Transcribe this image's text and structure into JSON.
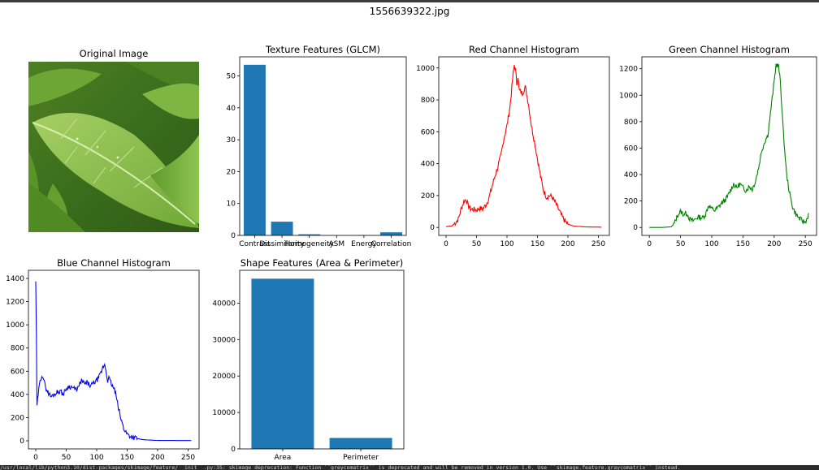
{
  "page": {
    "suptitle": "1556639322.jpg",
    "warning_text": "/usr/local/lib/python3.10/dist-packages/skimage/feature/__init__.py:35: skimage_deprecation: Function ``greycomatrix`` is deprecated and will be removed in version 1.0. Use ``skimage.feature.graycomatrix`` instead."
  },
  "image_panel": {
    "title": "Original Image"
  },
  "chart_data": [
    {
      "id": "texture",
      "type": "bar",
      "title": "Texture Features (GLCM)",
      "categories": [
        "Contrast",
        "Dissimilarity",
        "Homogeneity",
        "ASM",
        "Energy",
        "Correlation"
      ],
      "values": [
        53.5,
        4.3,
        0.35,
        0.01,
        0.08,
        0.97
      ],
      "ylim": [
        0,
        56
      ],
      "yticks": [
        0,
        10,
        20,
        30,
        40,
        50
      ],
      "color": "#1f77b4"
    },
    {
      "id": "red",
      "type": "line",
      "title": "Red Channel Histogram",
      "x_range": [
        0,
        255
      ],
      "xlim": [
        -12,
        268
      ],
      "ylim": [
        -50,
        1070
      ],
      "xticks": [
        0,
        50,
        100,
        150,
        200,
        250
      ],
      "yticks": [
        0,
        200,
        400,
        600,
        800,
        1000
      ],
      "color": "#ff0000",
      "keypoints": [
        [
          0,
          5
        ],
        [
          10,
          10
        ],
        [
          20,
          50
        ],
        [
          25,
          120
        ],
        [
          30,
          170
        ],
        [
          33,
          175
        ],
        [
          36,
          140
        ],
        [
          40,
          115
        ],
        [
          50,
          110
        ],
        [
          55,
          120
        ],
        [
          60,
          115
        ],
        [
          65,
          140
        ],
        [
          70,
          180
        ],
        [
          75,
          250
        ],
        [
          80,
          320
        ],
        [
          85,
          380
        ],
        [
          90,
          450
        ],
        [
          95,
          560
        ],
        [
          100,
          640
        ],
        [
          105,
          760
        ],
        [
          108,
          880
        ],
        [
          110,
          960
        ],
        [
          112,
          1020
        ],
        [
          114,
          990
        ],
        [
          116,
          900
        ],
        [
          118,
          950
        ],
        [
          120,
          860
        ],
        [
          125,
          840
        ],
        [
          130,
          880
        ],
        [
          135,
          780
        ],
        [
          140,
          640
        ],
        [
          145,
          540
        ],
        [
          150,
          430
        ],
        [
          155,
          320
        ],
        [
          160,
          230
        ],
        [
          165,
          190
        ],
        [
          170,
          200
        ],
        [
          175,
          185
        ],
        [
          180,
          150
        ],
        [
          185,
          110
        ],
        [
          190,
          70
        ],
        [
          195,
          40
        ],
        [
          200,
          20
        ],
        [
          210,
          8
        ],
        [
          230,
          3
        ],
        [
          255,
          2
        ]
      ],
      "noise": 18
    },
    {
      "id": "green",
      "type": "line",
      "title": "Green Channel Histogram",
      "x_range": [
        0,
        255
      ],
      "xlim": [
        -12,
        268
      ],
      "ylim": [
        -60,
        1290
      ],
      "xticks": [
        0,
        50,
        100,
        150,
        200,
        250
      ],
      "yticks": [
        0,
        200,
        400,
        600,
        800,
        1000,
        1200
      ],
      "color": "#008000",
      "keypoints": [
        [
          0,
          0
        ],
        [
          20,
          0
        ],
        [
          35,
          5
        ],
        [
          40,
          30
        ],
        [
          45,
          90
        ],
        [
          50,
          120
        ],
        [
          55,
          100
        ],
        [
          60,
          110
        ],
        [
          65,
          60
        ],
        [
          70,
          50
        ],
        [
          75,
          70
        ],
        [
          80,
          80
        ],
        [
          85,
          70
        ],
        [
          90,
          100
        ],
        [
          95,
          170
        ],
        [
          100,
          140
        ],
        [
          105,
          130
        ],
        [
          110,
          150
        ],
        [
          115,
          180
        ],
        [
          120,
          200
        ],
        [
          125,
          230
        ],
        [
          130,
          280
        ],
        [
          135,
          330
        ],
        [
          140,
          300
        ],
        [
          145,
          330
        ],
        [
          150,
          300
        ],
        [
          155,
          280
        ],
        [
          160,
          310
        ],
        [
          165,
          290
        ],
        [
          170,
          350
        ],
        [
          175,
          450
        ],
        [
          180,
          580
        ],
        [
          185,
          650
        ],
        [
          190,
          700
        ],
        [
          195,
          900
        ],
        [
          200,
          1100
        ],
        [
          203,
          1230
        ],
        [
          207,
          1220
        ],
        [
          210,
          1100
        ],
        [
          215,
          700
        ],
        [
          220,
          400
        ],
        [
          225,
          250
        ],
        [
          230,
          150
        ],
        [
          235,
          100
        ],
        [
          240,
          70
        ],
        [
          245,
          50
        ],
        [
          250,
          40
        ],
        [
          253,
          70
        ],
        [
          255,
          100
        ]
      ],
      "noise": 20
    },
    {
      "id": "blue",
      "type": "line",
      "title": "Blue Channel Histogram",
      "x_range": [
        0,
        255
      ],
      "xlim": [
        -12,
        268
      ],
      "ylim": [
        -70,
        1470
      ],
      "xticks": [
        0,
        50,
        100,
        150,
        200,
        250
      ],
      "yticks": [
        0,
        200,
        400,
        600,
        800,
        1000,
        1200,
        1400
      ],
      "color": "#0000ff",
      "keypoints": [
        [
          0,
          1380
        ],
        [
          1,
          900
        ],
        [
          2,
          300
        ],
        [
          4,
          400
        ],
        [
          6,
          480
        ],
        [
          8,
          530
        ],
        [
          10,
          570
        ],
        [
          12,
          550
        ],
        [
          15,
          480
        ],
        [
          18,
          440
        ],
        [
          20,
          420
        ],
        [
          25,
          380
        ],
        [
          30,
          400
        ],
        [
          35,
          420
        ],
        [
          40,
          430
        ],
        [
          45,
          400
        ],
        [
          50,
          450
        ],
        [
          55,
          470
        ],
        [
          60,
          460
        ],
        [
          65,
          440
        ],
        [
          70,
          460
        ],
        [
          75,
          520
        ],
        [
          80,
          490
        ],
        [
          85,
          500
        ],
        [
          90,
          470
        ],
        [
          95,
          500
        ],
        [
          100,
          520
        ],
        [
          105,
          560
        ],
        [
          108,
          600
        ],
        [
          110,
          630
        ],
        [
          113,
          660
        ],
        [
          115,
          610
        ],
        [
          118,
          520
        ],
        [
          120,
          540
        ],
        [
          125,
          480
        ],
        [
          130,
          430
        ],
        [
          135,
          300
        ],
        [
          140,
          180
        ],
        [
          145,
          100
        ],
        [
          150,
          60
        ],
        [
          155,
          40
        ],
        [
          160,
          30
        ],
        [
          170,
          15
        ],
        [
          180,
          8
        ],
        [
          200,
          3
        ],
        [
          255,
          2
        ]
      ],
      "noise": 22
    },
    {
      "id": "shape",
      "type": "bar",
      "title": "Shape Features (Area & Perimeter)",
      "categories": [
        "Area",
        "Perimeter"
      ],
      "values": [
        46700,
        3000
      ],
      "ylim": [
        0,
        49000
      ],
      "yticks": [
        0,
        10000,
        20000,
        30000,
        40000
      ],
      "color": "#1f77b4"
    }
  ]
}
